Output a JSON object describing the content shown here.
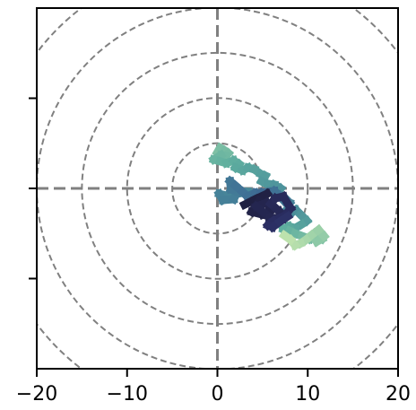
{
  "chart_data": {
    "type": "line",
    "title": "",
    "xlabel": "",
    "ylabel": "",
    "xlim": [
      -20,
      20
    ],
    "ylim": [
      -20,
      20
    ],
    "xticks": [
      -20,
      -10,
      0,
      10,
      20
    ],
    "xtick_labels": [
      "−20",
      "−10",
      "0",
      "10",
      "20"
    ],
    "yticks": [
      -10,
      0,
      10
    ],
    "ytick_labels": [
      "",
      "",
      ""
    ],
    "crosshair": {
      "x": 0,
      "y": 0,
      "color": "#808080",
      "style": "dashed"
    },
    "reference_circles": {
      "center": [
        0,
        0
      ],
      "radii": [
        5,
        10,
        15,
        20,
        25
      ],
      "color": "#808080",
      "style": "dashed"
    },
    "colormap": [
      "#1d1d3a",
      "#2b2e63",
      "#34508b",
      "#3f6f95",
      "#4a8e9b",
      "#5fae9f",
      "#8fcaa7",
      "#c1e4ad",
      "#f0f8c5"
    ],
    "series": [
      {
        "x": [
          0.0,
          0.3,
          0.8,
          1.2,
          0.9,
          0.4,
          -0.4,
          0.3,
          1.0,
          1.8,
          2.4,
          2.0,
          2.8,
          3.4,
          4.1,
          4.8,
          5.3,
          4.9,
          5.6,
          6.3,
          7.0,
          6.5,
          5.8,
          4.6,
          3.4,
          2.1,
          1.0,
          0.2,
          0.6,
          1.8,
          2.2,
          1.5,
          1.4,
          2.0,
          2.8,
          3.3,
          4.2,
          5.1,
          4.8,
          5.6,
          6.3,
          6.9,
          7.4,
          7.6,
          8.0,
          7.8,
          8.3,
          8.7,
          9.2,
          9.5,
          9.9,
          9.3,
          8.6,
          7.9,
          7.3,
          8.0,
          8.6,
          9.4,
          10.2,
          10.8,
          11.6,
          11.0,
          11.8,
          11.2,
          10.4,
          9.8,
          9.2,
          8.6,
          8.1,
          7.4
        ],
        "y": [
          4.0,
          4.5,
          4.2,
          3.9,
          3.6,
          3.7,
          3.2,
          3.0,
          2.8,
          3.1,
          2.7,
          2.3,
          2.0,
          2.3,
          2.1,
          1.6,
          1.4,
          0.8,
          0.5,
          0.4,
          0.0,
          -0.5,
          -0.3,
          -0.7,
          -0.4,
          -0.6,
          -0.8,
          -0.6,
          -1.3,
          -1.2,
          -0.4,
          -0.1,
          0.8,
          0.3,
          -0.4,
          -0.9,
          -0.5,
          -0.9,
          -0.5,
          -0.4,
          -0.3,
          -0.8,
          -1.4,
          -1.2,
          -1.6,
          -2.2,
          -2.6,
          -2.4,
          -2.9,
          -3.2,
          -3.6,
          -4.0,
          -4.4,
          -4.2,
          -4.5,
          -4.7,
          -5.0,
          -5.3,
          -5.6,
          -5.0,
          -5.6,
          -5.9,
          -5.3,
          -4.6,
          -5.2,
          -5.7,
          -6.1,
          -6.3,
          -5.7,
          -5.2
        ]
      },
      {
        "x": [
          3.0,
          4.2,
          5.5,
          4.6,
          3.8,
          5.0,
          6.0,
          5.4,
          4.3,
          5.8,
          7.2,
          6.8,
          5.9,
          6.4,
          7.3,
          8.1,
          7.5,
          6.2,
          5.6,
          6.1,
          6.9,
          7.8
        ],
        "y": [
          -1.8,
          -1.2,
          -0.6,
          -1.4,
          -2.6,
          -2.9,
          -2.4,
          -1.6,
          -2.0,
          -3.2,
          -3.4,
          -2.5,
          -1.7,
          -1.1,
          -0.9,
          -2.2,
          -3.0,
          -3.6,
          -4.1,
          -4.3,
          -3.7,
          -3.1
        ]
      }
    ]
  }
}
